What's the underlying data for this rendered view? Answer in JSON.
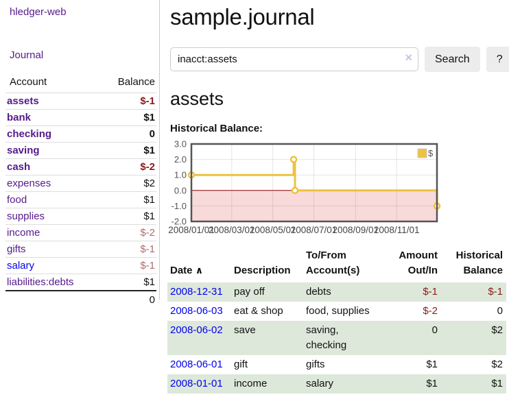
{
  "app": {
    "brand": "hledger-web"
  },
  "sidebar": {
    "journal_label": "Journal",
    "table": {
      "headers": {
        "account": "Account",
        "balance": "Balance"
      },
      "rows": [
        {
          "account": "assets",
          "balance": "$-1",
          "depth": 1,
          "bold": true,
          "balance_style": "neg-strong"
        },
        {
          "account": "bank",
          "balance": "$1",
          "depth": 2,
          "bold": true,
          "balance_style": ""
        },
        {
          "account": "checking",
          "balance": "0",
          "depth": 3,
          "bold": true,
          "balance_style": ""
        },
        {
          "account": "saving",
          "balance": "$1",
          "depth": 3,
          "bold": true,
          "balance_style": ""
        },
        {
          "account": "cash",
          "balance": "$-2",
          "depth": 2,
          "bold": true,
          "balance_style": "neg-strong"
        },
        {
          "account": "expenses",
          "balance": "$2",
          "depth": 1,
          "bold": false,
          "balance_style": ""
        },
        {
          "account": "food",
          "balance": "$1",
          "depth": 2,
          "bold": false,
          "balance_style": ""
        },
        {
          "account": "supplies",
          "balance": "$1",
          "depth": 2,
          "bold": false,
          "balance_style": ""
        },
        {
          "account": "income",
          "balance": "$-2",
          "depth": 1,
          "bold": false,
          "balance_style": "neg-soft"
        },
        {
          "account": "gifts",
          "balance": "$-1",
          "depth": 2,
          "bold": false,
          "balance_style": "neg-soft"
        },
        {
          "account": "salary",
          "balance": "$-1",
          "depth": 2,
          "bold": false,
          "balance_style": "neg-soft",
          "link_style": "blue"
        },
        {
          "account": "liabilities:debts",
          "balance": "$1",
          "depth": 1,
          "bold": false,
          "balance_style": ""
        }
      ],
      "total": "0"
    }
  },
  "header": {
    "title": "sample.journal"
  },
  "search": {
    "query": "inacct:assets",
    "clear_icon": "×",
    "button_label": "Search",
    "help_label": "?"
  },
  "account_page": {
    "heading": "assets",
    "chart_label": "Historical Balance:"
  },
  "chart_data": {
    "type": "line",
    "step": true,
    "title": "Historical Balance:",
    "series": [
      {
        "name": "$",
        "color": "#edc240",
        "x": [
          "2008-01-01",
          "2008-06-01",
          "2008-06-03",
          "2008-12-31"
        ],
        "y": [
          1,
          2,
          0,
          -1
        ]
      }
    ],
    "xrange": [
      "2008-01-01",
      "2008-12-31"
    ],
    "ylim": [
      -2,
      3
    ],
    "yticks": [
      3.0,
      2.0,
      1.0,
      0.0,
      -1.0,
      -2.0
    ],
    "xticks": [
      {
        "date": "2008-01-01",
        "label": "2008/01/01"
      },
      {
        "date": "2008-03-01",
        "label": "2008/03/01"
      },
      {
        "date": "2008-05-01",
        "label": "2008/05/01"
      },
      {
        "date": "2008-07-01",
        "label": "2008/07/01"
      },
      {
        "date": "2008-09-01",
        "label": "2008/09/01"
      },
      {
        "date": "2008-11-01",
        "label": "2008/11/01"
      }
    ],
    "legend_position": "top-right",
    "grid": true,
    "colors": {
      "line": "#edc240",
      "marker_fill": "#ffffff",
      "negative_region": "#f8dada",
      "zero_line": "#8b0000",
      "border": "#555555",
      "tick_text": "#545454"
    }
  },
  "register": {
    "columns": {
      "date": "Date",
      "description": "Description",
      "accounts": "To/From Account(s)",
      "amount": "Amount Out/In",
      "balance": "Historical Balance"
    },
    "sort_icon": "∧",
    "rows": [
      {
        "date": "2008-12-31",
        "description": "pay off",
        "accounts": "debts",
        "amount": "$-1",
        "balance": "$-1",
        "amount_negative": true,
        "balance_negative": true,
        "shaded": true
      },
      {
        "date": "2008-06-03",
        "description": "eat & shop",
        "accounts": "food, supplies",
        "amount": "$-2",
        "balance": "0",
        "amount_negative": true,
        "balance_negative": false,
        "shaded": false
      },
      {
        "date": "2008-06-02",
        "description": "save",
        "accounts": "saving, checking",
        "amount": "0",
        "balance": "$2",
        "amount_negative": false,
        "balance_negative": false,
        "shaded": true
      },
      {
        "date": "2008-06-01",
        "description": "gift",
        "accounts": "gifts",
        "amount": "$1",
        "balance": "$2",
        "amount_negative": false,
        "balance_negative": false,
        "shaded": false
      },
      {
        "date": "2008-01-01",
        "description": "income",
        "accounts": "salary",
        "amount": "$1",
        "balance": "$1",
        "amount_negative": false,
        "balance_negative": false,
        "shaded": true
      }
    ]
  },
  "colors": {
    "link_visited": "#551a8b",
    "link": "#0000ee",
    "negative_strong": "#8b1a1a",
    "negative_soft": "#b36b6b",
    "row_shaded": "#dde8da",
    "button_bg": "#ececec"
  }
}
